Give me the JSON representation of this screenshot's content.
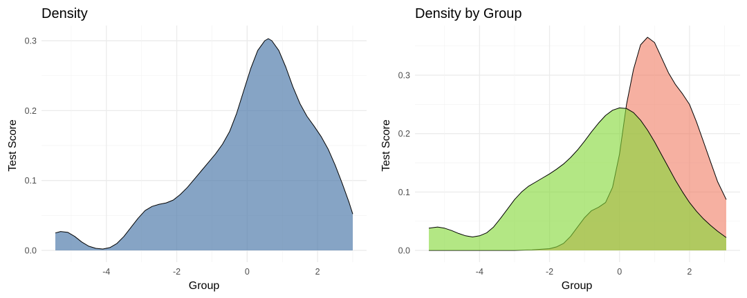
{
  "chart_data": [
    {
      "type": "area",
      "title": "Density",
      "xlabel": "Group",
      "ylabel": "Test Score",
      "xlim": [
        -5.45,
        3.0
      ],
      "ylim": [
        0,
        0.303
      ],
      "x_ticks": [
        -4,
        -2,
        0,
        2
      ],
      "x_tick_labels": [
        "-4",
        "-2",
        "0",
        "2"
      ],
      "y_ticks": [
        0.0,
        0.1,
        0.2,
        0.3
      ],
      "y_tick_labels": [
        "0.0",
        "0.1",
        "0.2",
        "0.3"
      ],
      "grid": true,
      "legend": "none",
      "series": [
        {
          "color": "#4a78a8",
          "opacity": 0.67,
          "points": [
            [
              -5.45,
              0.025
            ],
            [
              -5.3,
              0.027
            ],
            [
              -5.1,
              0.026
            ],
            [
              -4.9,
              0.02
            ],
            [
              -4.7,
              0.012
            ],
            [
              -4.5,
              0.006
            ],
            [
              -4.3,
              0.003
            ],
            [
              -4.1,
              0.002
            ],
            [
              -3.9,
              0.004
            ],
            [
              -3.7,
              0.01
            ],
            [
              -3.5,
              0.02
            ],
            [
              -3.3,
              0.033
            ],
            [
              -3.1,
              0.046
            ],
            [
              -2.9,
              0.057
            ],
            [
              -2.7,
              0.063
            ],
            [
              -2.5,
              0.066
            ],
            [
              -2.3,
              0.068
            ],
            [
              -2.1,
              0.072
            ],
            [
              -1.9,
              0.08
            ],
            [
              -1.7,
              0.09
            ],
            [
              -1.5,
              0.102
            ],
            [
              -1.3,
              0.114
            ],
            [
              -1.1,
              0.126
            ],
            [
              -0.9,
              0.138
            ],
            [
              -0.7,
              0.152
            ],
            [
              -0.5,
              0.17
            ],
            [
              -0.3,
              0.196
            ],
            [
              -0.1,
              0.228
            ],
            [
              0.1,
              0.26
            ],
            [
              0.3,
              0.286
            ],
            [
              0.5,
              0.3
            ],
            [
              0.6,
              0.303
            ],
            [
              0.7,
              0.3
            ],
            [
              0.9,
              0.286
            ],
            [
              1.1,
              0.262
            ],
            [
              1.3,
              0.234
            ],
            [
              1.5,
              0.21
            ],
            [
              1.7,
              0.192
            ],
            [
              1.9,
              0.178
            ],
            [
              2.1,
              0.163
            ],
            [
              2.3,
              0.145
            ],
            [
              2.5,
              0.122
            ],
            [
              2.7,
              0.096
            ],
            [
              2.9,
              0.068
            ],
            [
              3.0,
              0.052
            ]
          ]
        }
      ]
    },
    {
      "type": "area",
      "title": "Density by Group",
      "xlabel": "Group",
      "ylabel": "Test Score",
      "xlim": [
        -5.45,
        3.05
      ],
      "ylim": [
        0,
        0.365
      ],
      "x_ticks": [
        -4,
        -2,
        0,
        2
      ],
      "x_tick_labels": [
        "-4",
        "-2",
        "0",
        "2"
      ],
      "y_ticks": [
        0.0,
        0.1,
        0.2,
        0.3
      ],
      "y_tick_labels": [
        "0.0",
        "0.1",
        "0.2",
        "0.3"
      ],
      "grid": true,
      "legend": "none",
      "series": [
        {
          "color": "#f08068",
          "opacity": 0.62,
          "points": [
            [
              -5.45,
              0.0
            ],
            [
              -3.0,
              0.0
            ],
            [
              -2.5,
              0.001
            ],
            [
              -2.0,
              0.003
            ],
            [
              -1.8,
              0.006
            ],
            [
              -1.6,
              0.012
            ],
            [
              -1.4,
              0.024
            ],
            [
              -1.2,
              0.04
            ],
            [
              -1.0,
              0.056
            ],
            [
              -0.8,
              0.068
            ],
            [
              -0.6,
              0.074
            ],
            [
              -0.4,
              0.082
            ],
            [
              -0.2,
              0.108
            ],
            [
              0.0,
              0.165
            ],
            [
              0.2,
              0.25
            ],
            [
              0.4,
              0.31
            ],
            [
              0.6,
              0.352
            ],
            [
              0.8,
              0.365
            ],
            [
              1.0,
              0.356
            ],
            [
              1.2,
              0.33
            ],
            [
              1.4,
              0.304
            ],
            [
              1.6,
              0.284
            ],
            [
              1.8,
              0.268
            ],
            [
              2.0,
              0.25
            ],
            [
              2.2,
              0.22
            ],
            [
              2.4,
              0.186
            ],
            [
              2.6,
              0.152
            ],
            [
              2.8,
              0.118
            ],
            [
              3.05,
              0.087
            ]
          ]
        },
        {
          "color": "#84d838",
          "opacity": 0.62,
          "points": [
            [
              -5.45,
              0.038
            ],
            [
              -5.2,
              0.04
            ],
            [
              -5.0,
              0.038
            ],
            [
              -4.8,
              0.034
            ],
            [
              -4.6,
              0.029
            ],
            [
              -4.4,
              0.025
            ],
            [
              -4.2,
              0.023
            ],
            [
              -4.0,
              0.025
            ],
            [
              -3.8,
              0.03
            ],
            [
              -3.6,
              0.04
            ],
            [
              -3.4,
              0.055
            ],
            [
              -3.2,
              0.071
            ],
            [
              -3.0,
              0.087
            ],
            [
              -2.8,
              0.1
            ],
            [
              -2.6,
              0.11
            ],
            [
              -2.4,
              0.117
            ],
            [
              -2.2,
              0.124
            ],
            [
              -2.0,
              0.131
            ],
            [
              -1.8,
              0.139
            ],
            [
              -1.6,
              0.148
            ],
            [
              -1.4,
              0.159
            ],
            [
              -1.2,
              0.172
            ],
            [
              -1.0,
              0.187
            ],
            [
              -0.8,
              0.203
            ],
            [
              -0.6,
              0.218
            ],
            [
              -0.4,
              0.231
            ],
            [
              -0.2,
              0.24
            ],
            [
              0.0,
              0.244
            ],
            [
              0.2,
              0.243
            ],
            [
              0.4,
              0.236
            ],
            [
              0.6,
              0.223
            ],
            [
              0.8,
              0.206
            ],
            [
              1.0,
              0.186
            ],
            [
              1.2,
              0.164
            ],
            [
              1.4,
              0.142
            ],
            [
              1.6,
              0.12
            ],
            [
              1.8,
              0.1
            ],
            [
              2.0,
              0.082
            ],
            [
              2.2,
              0.067
            ],
            [
              2.4,
              0.054
            ],
            [
              2.6,
              0.043
            ],
            [
              2.8,
              0.033
            ],
            [
              3.05,
              0.022
            ]
          ]
        }
      ]
    }
  ]
}
